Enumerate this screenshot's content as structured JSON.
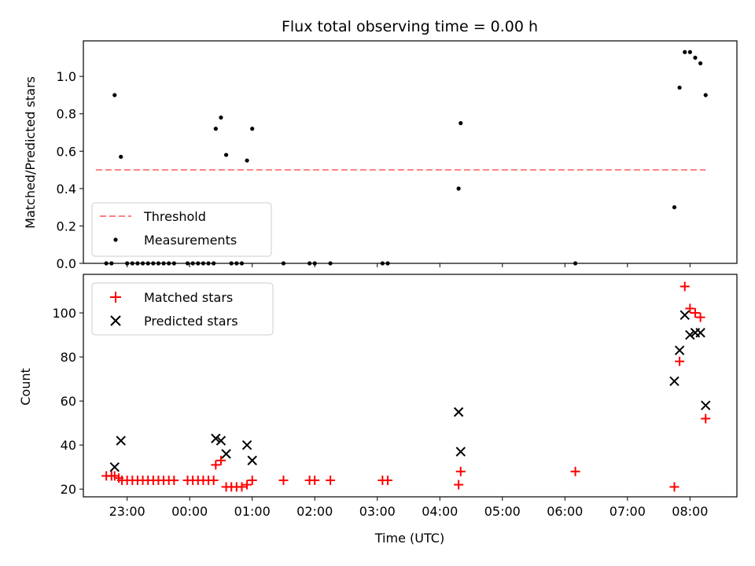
{
  "chart_data": [
    {
      "type": "scatter",
      "title": "Flux total observing time = 0.00 h",
      "ylabel": "Matched/Predicted stars",
      "ylim": [
        0,
        1.19
      ],
      "yticks": [
        "0.0",
        "0.2",
        "0.4",
        "0.6",
        "0.8",
        "1.0"
      ],
      "legend": {
        "placement": "lower-left",
        "entries": [
          "Threshold",
          "Measurements"
        ]
      },
      "threshold": {
        "name": "Threshold",
        "value": 0.5,
        "x_range": [
          "22:30",
          "08:15"
        ],
        "color": "#ff7f7f",
        "style": "dashed"
      },
      "series": [
        {
          "name": "Measurements",
          "color": "#000000",
          "marker": "dot",
          "points": [
            [
              "22:40",
              0
            ],
            [
              "22:45",
              0
            ],
            [
              "22:48",
              0.9
            ],
            [
              "22:54",
              0.57
            ],
            [
              "23:00",
              0
            ],
            [
              "23:05",
              0
            ],
            [
              "23:10",
              0
            ],
            [
              "23:15",
              0
            ],
            [
              "23:20",
              0
            ],
            [
              "23:25",
              0
            ],
            [
              "23:30",
              0
            ],
            [
              "23:35",
              0
            ],
            [
              "23:40",
              0
            ],
            [
              "23:45",
              0
            ],
            [
              "23:58",
              0
            ],
            [
              "00:03",
              0
            ],
            [
              "00:08",
              0
            ],
            [
              "00:13",
              0
            ],
            [
              "00:18",
              0
            ],
            [
              "00:23",
              0
            ],
            [
              "00:25",
              0.72
            ],
            [
              "00:30",
              0.78
            ],
            [
              "00:35",
              0.58
            ],
            [
              "00:40",
              0
            ],
            [
              "00:45",
              0
            ],
            [
              "00:50",
              0
            ],
            [
              "00:55",
              0.55
            ],
            [
              "01:00",
              0.72
            ],
            [
              "01:30",
              0
            ],
            [
              "01:55",
              0
            ],
            [
              "02:00",
              0
            ],
            [
              "02:15",
              0
            ],
            [
              "03:05",
              0
            ],
            [
              "03:10",
              0
            ],
            [
              "04:18",
              0.4
            ],
            [
              "04:20",
              0.75
            ],
            [
              "06:10",
              0
            ],
            [
              "07:45",
              0.3
            ],
            [
              "07:50",
              0.94
            ],
            [
              "07:55",
              1.13
            ],
            [
              "08:00",
              1.13
            ],
            [
              "08:05",
              1.1
            ],
            [
              "08:10",
              1.07
            ],
            [
              "08:15",
              0.9
            ]
          ]
        }
      ]
    },
    {
      "type": "scatter",
      "xlabel": "Time (UTC)",
      "ylabel": "Count",
      "ylim": [
        16.5,
        117.5
      ],
      "yticks": [
        "20",
        "40",
        "60",
        "80",
        "100"
      ],
      "xticks": [
        "23:00",
        "00:00",
        "01:00",
        "02:00",
        "03:00",
        "04:00",
        "05:00",
        "06:00",
        "07:00",
        "08:00"
      ],
      "xlim": [
        "22:18",
        "08:45"
      ],
      "legend": {
        "placement": "upper-left",
        "entries": [
          "Matched stars",
          "Predicted stars"
        ]
      },
      "series": [
        {
          "name": "Matched stars",
          "color": "#ff0000",
          "marker": "plus",
          "points": [
            [
              "22:40",
              26
            ],
            [
              "22:45",
              26
            ],
            [
              "22:48",
              26
            ],
            [
              "22:52",
              25
            ],
            [
              "22:55",
              24
            ],
            [
              "23:00",
              24
            ],
            [
              "23:05",
              24
            ],
            [
              "23:10",
              24
            ],
            [
              "23:15",
              24
            ],
            [
              "23:20",
              24
            ],
            [
              "23:25",
              24
            ],
            [
              "23:30",
              24
            ],
            [
              "23:35",
              24
            ],
            [
              "23:40",
              24
            ],
            [
              "23:45",
              24
            ],
            [
              "23:58",
              24
            ],
            [
              "00:03",
              24
            ],
            [
              "00:08",
              24
            ],
            [
              "00:13",
              24
            ],
            [
              "00:18",
              24
            ],
            [
              "00:23",
              24
            ],
            [
              "00:25",
              31
            ],
            [
              "00:30",
              33
            ],
            [
              "00:35",
              21
            ],
            [
              "00:40",
              21
            ],
            [
              "00:45",
              21
            ],
            [
              "00:50",
              21
            ],
            [
              "00:55",
              22
            ],
            [
              "01:00",
              24
            ],
            [
              "01:30",
              24
            ],
            [
              "01:55",
              24
            ],
            [
              "02:00",
              24
            ],
            [
              "02:15",
              24
            ],
            [
              "03:05",
              24
            ],
            [
              "03:10",
              24
            ],
            [
              "04:18",
              22
            ],
            [
              "04:20",
              28
            ],
            [
              "06:10",
              28
            ],
            [
              "07:45",
              21
            ],
            [
              "07:50",
              78
            ],
            [
              "07:55",
              112
            ],
            [
              "08:00",
              102
            ],
            [
              "08:05",
              100
            ],
            [
              "08:10",
              98
            ],
            [
              "08:15",
              52
            ]
          ]
        },
        {
          "name": "Predicted stars",
          "color": "#000000",
          "marker": "x",
          "points": [
            [
              "22:48",
              30
            ],
            [
              "22:54",
              42
            ],
            [
              "00:25",
              43
            ],
            [
              "00:30",
              42
            ],
            [
              "00:35",
              36
            ],
            [
              "00:55",
              40
            ],
            [
              "01:00",
              33
            ],
            [
              "04:18",
              55
            ],
            [
              "04:20",
              37
            ],
            [
              "07:45",
              69
            ],
            [
              "07:50",
              83
            ],
            [
              "07:55",
              99
            ],
            [
              "08:00",
              90
            ],
            [
              "08:05",
              91
            ],
            [
              "08:10",
              91
            ],
            [
              "08:15",
              58
            ]
          ]
        }
      ]
    }
  ]
}
